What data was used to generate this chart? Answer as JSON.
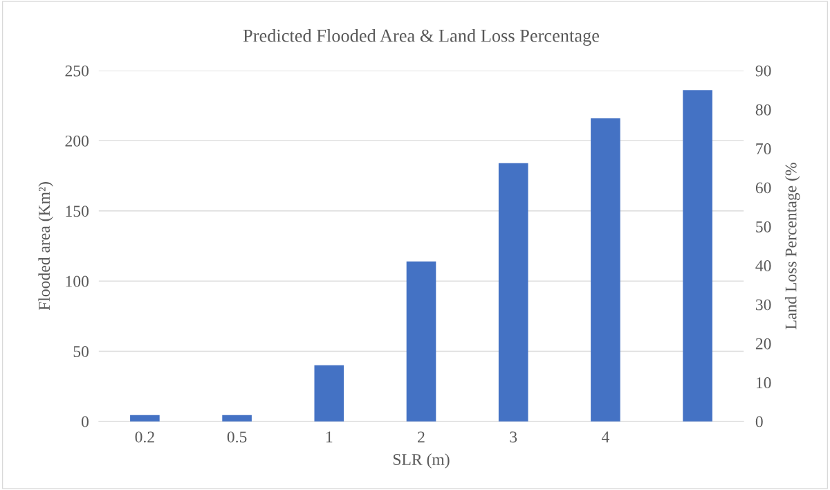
{
  "chart_data": {
    "type": "bar",
    "title": "Predicted Flooded Area & Land Loss Percentage",
    "xlabel": "SLR (m)",
    "ylabel": "Flooded area (Km²)",
    "y2label": "Land Loss Percentage (%",
    "categories": [
      "0.2",
      "0.5",
      "1",
      "2",
      "3",
      "4",
      null
    ],
    "values": [
      4.5,
      4.5,
      40,
      114,
      184,
      216,
      236
    ],
    "color": "#4472c4",
    "ylim": [
      0,
      250
    ],
    "yticks": [
      0,
      50,
      100,
      150,
      200,
      250
    ],
    "y2lim": [
      0,
      90
    ],
    "y2ticks": [
      0,
      10,
      20,
      30,
      40,
      50,
      60,
      70,
      80,
      90
    ],
    "grid": "y"
  }
}
